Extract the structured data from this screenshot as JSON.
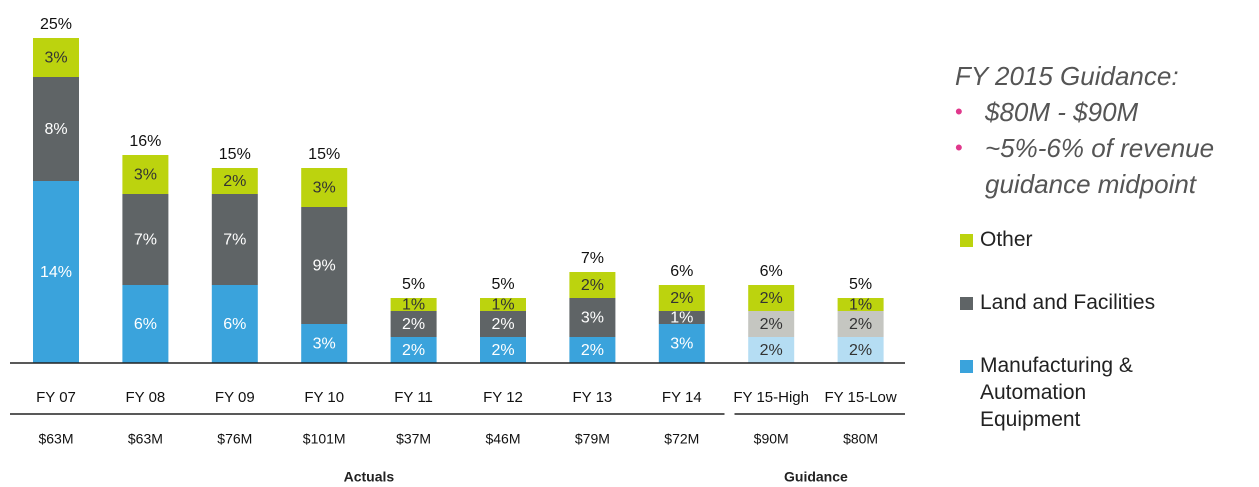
{
  "chart_data": {
    "type": "stacked_bar",
    "categories": [
      "FY 07",
      "FY 08",
      "FY 09",
      "FY 10",
      "FY 11",
      "FY 12",
      "FY 13",
      "FY 14",
      "FY 15-High",
      "FY 15-Low"
    ],
    "series": [
      {
        "name": "Manufacturing & Automation Equipment",
        "color": "#3aa3dc",
        "colors": [
          "#3aa3dc",
          "#3aa3dc",
          "#3aa3dc",
          "#3aa3dc",
          "#3aa3dc",
          "#3aa3dc",
          "#3aa3dc",
          "#3aa3dc",
          "#b5ddf3",
          "#b5ddf3"
        ],
        "values": [
          14,
          6,
          6,
          3,
          2,
          2,
          2,
          3,
          2,
          2
        ],
        "value_labels": [
          "14%",
          "6%",
          "6%",
          "3%",
          "2%",
          "2%",
          "2%",
          "3%",
          "2%",
          "2%"
        ]
      },
      {
        "name": "Land and Facilities",
        "color": "#5f6466",
        "colors": [
          "#5f6466",
          "#5f6466",
          "#5f6466",
          "#5f6466",
          "#5f6466",
          "#5f6466",
          "#5f6466",
          "#5f6466",
          "#c5c6c1",
          "#c5c6c1"
        ],
        "values": [
          8,
          7,
          7,
          9,
          2,
          2,
          3,
          1,
          2,
          2
        ],
        "value_labels": [
          "8%",
          "7%",
          "7%",
          "9%",
          "2%",
          "2%",
          "3%",
          "1%",
          "2%",
          "2%"
        ]
      },
      {
        "name": "Other",
        "color": "#bcd30e",
        "colors": [
          "#bcd30e",
          "#bcd30e",
          "#bcd30e",
          "#bcd30e",
          "#bcd30e",
          "#bcd30e",
          "#bcd30e",
          "#bcd30e",
          "#bcd30e",
          "#bcd30e"
        ],
        "values": [
          3,
          3,
          2,
          3,
          1,
          1,
          2,
          2,
          2,
          1
        ],
        "value_labels": [
          "3%",
          "3%",
          "2%",
          "3%",
          "1%",
          "1%",
          "2%",
          "2%",
          "2%",
          "1%"
        ]
      }
    ],
    "totals": [
      25,
      16,
      15,
      15,
      5,
      5,
      7,
      6,
      6,
      5
    ],
    "total_labels": [
      "25%",
      "16%",
      "15%",
      "15%",
      "5%",
      "5%",
      "7%",
      "6%",
      "6%",
      "5%"
    ],
    "spend": [
      "$63M",
      "$63M",
      "$76M",
      "$101M",
      "$37M",
      "$46M",
      "$79M",
      "$72M",
      "$90M",
      "$80M"
    ],
    "groups": [
      {
        "name": "Actuals",
        "count": 8
      },
      {
        "name": "Guidance",
        "count": 2
      }
    ]
  },
  "guidance_note": {
    "title": "FY 2015 Guidance:",
    "bullets": [
      "$80M - $90M",
      "~5%-6% of revenue guidance midpoint"
    ]
  }
}
